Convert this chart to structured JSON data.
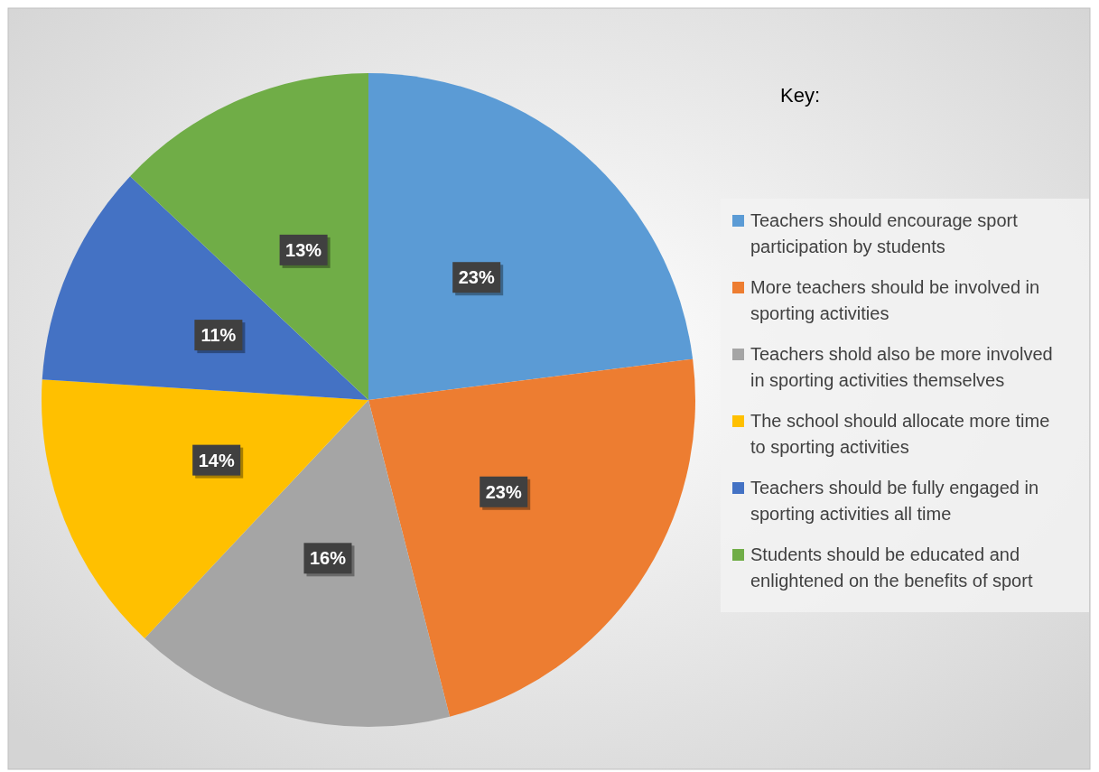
{
  "chart_data": {
    "type": "pie",
    "legend_title": "Key:",
    "legend": "right",
    "categories": [
      "Teachers should encourage sport participation by students",
      "More teachers should be involved in sporting activities",
      "Teachers shold also be more involved in sporting activities themselves",
      "The school should allocate more time to sporting activities",
      "Teachers should be fully engaged in sporting activities all time",
      "Students should be educated and enlightened on the benefits of sport"
    ],
    "values": [
      23,
      23,
      16,
      14,
      11,
      13
    ],
    "value_labels": [
      "23%",
      "23%",
      "16%",
      "14%",
      "11%",
      "13%"
    ],
    "colors": [
      "#5b9bd5",
      "#ed7d31",
      "#a5a5a5",
      "#ffc000",
      "#4472c4",
      "#70ad47"
    ]
  }
}
